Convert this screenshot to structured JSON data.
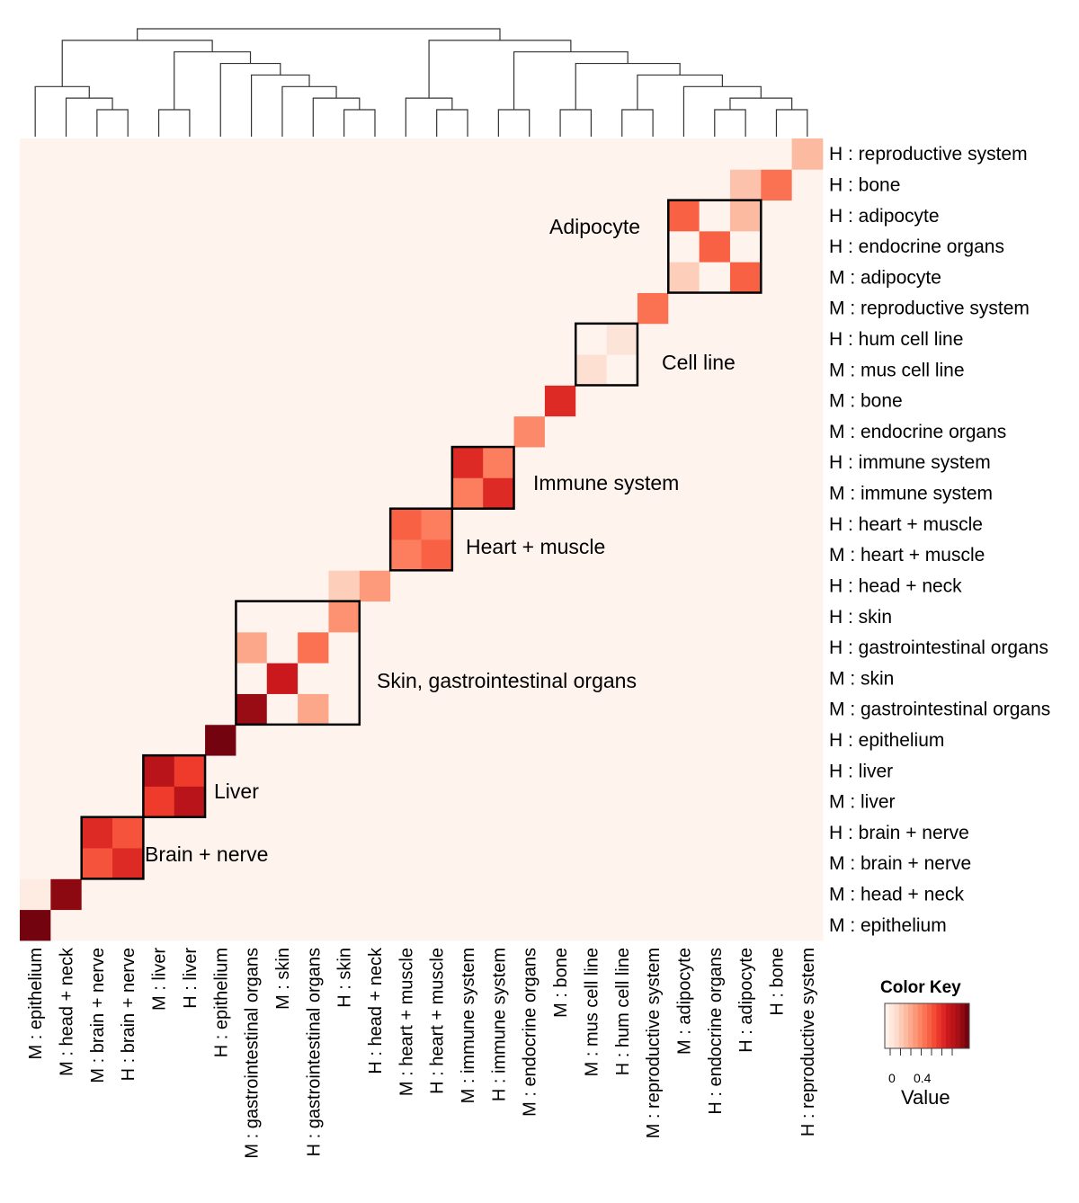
{
  "chart_data": {
    "type": "heatmap",
    "title": "",
    "labels": [
      "M : epithelium",
      "M : head + neck",
      "M : brain + nerve",
      "H : brain + nerve",
      "M : liver",
      "H : liver",
      "H : epithelium",
      "M : gastrointestinal organs",
      "M : skin",
      "H : gastrointestinal organs",
      "H : skin",
      "H : head + neck",
      "M : heart + muscle",
      "H : heart + muscle",
      "M : immune system",
      "H : immune system",
      "M : endocrine organs",
      "M : bone",
      "M : mus cell line",
      "H : hum cell line",
      "M : reproductive system",
      "M : adipocyte",
      "H : endocrine organs",
      "H : adipocyte",
      "H : bone",
      "H : reproductive system"
    ],
    "value_range": [
      0,
      0.8
    ],
    "default_value": 0.01,
    "values": [
      {
        "row": "M : epithelium",
        "col": "M : epithelium",
        "value": 0.78
      },
      {
        "row": "M : head + neck",
        "col": "M : head + neck",
        "value": 0.74
      },
      {
        "row": "M : brain + nerve",
        "col": "M : brain + nerve",
        "value": 0.45
      },
      {
        "row": "H : brain + nerve",
        "col": "H : brain + nerve",
        "value": 0.45
      },
      {
        "row": "M : brain + nerve",
        "col": "H : brain + nerve",
        "value": 0.55
      },
      {
        "row": "H : brain + nerve",
        "col": "M : brain + nerve",
        "value": 0.55
      },
      {
        "row": "M : liver",
        "col": "M : liver",
        "value": 0.5
      },
      {
        "row": "H : liver",
        "col": "H : liver",
        "value": 0.5
      },
      {
        "row": "M : liver",
        "col": "H : liver",
        "value": 0.65
      },
      {
        "row": "H : liver",
        "col": "M : liver",
        "value": 0.65
      },
      {
        "row": "H : epithelium",
        "col": "H : epithelium",
        "value": 0.78
      },
      {
        "row": "M : gastrointestinal organs",
        "col": "M : gastrointestinal organs",
        "value": 0.72
      },
      {
        "row": "M : skin",
        "col": "M : skin",
        "value": 0.6
      },
      {
        "row": "H : gastrointestinal organs",
        "col": "H : gastrointestinal organs",
        "value": 0.38
      },
      {
        "row": "H : skin",
        "col": "H : skin",
        "value": 0.3
      },
      {
        "row": "H : gastrointestinal organs",
        "col": "M : gastrointestinal organs",
        "value": 0.25
      },
      {
        "row": "M : gastrointestinal organs",
        "col": "H : gastrointestinal organs",
        "value": 0.25
      },
      {
        "row": "H : head + neck",
        "col": "H : head + neck",
        "value": 0.28
      },
      {
        "row": "M : heart + muscle",
        "col": "M : heart + muscle",
        "value": 0.35
      },
      {
        "row": "H : heart + muscle",
        "col": "H : heart + muscle",
        "value": 0.35
      },
      {
        "row": "M : heart + muscle",
        "col": "H : heart + muscle",
        "value": 0.42
      },
      {
        "row": "H : heart + muscle",
        "col": "M : heart + muscle",
        "value": 0.42
      },
      {
        "row": "M : immune system",
        "col": "M : immune system",
        "value": 0.35
      },
      {
        "row": "H : immune system",
        "col": "H : immune system",
        "value": 0.35
      },
      {
        "row": "M : immune system",
        "col": "H : immune system",
        "value": 0.55
      },
      {
        "row": "H : immune system",
        "col": "M : immune system",
        "value": 0.55
      },
      {
        "row": "M : endocrine organs",
        "col": "M : endocrine organs",
        "value": 0.32
      },
      {
        "row": "M : bone",
        "col": "M : bone",
        "value": 0.55
      },
      {
        "row": "M : mus cell line",
        "col": "M : mus cell line",
        "value": 0.1
      },
      {
        "row": "H : hum cell line",
        "col": "H : hum cell line",
        "value": 0.08
      },
      {
        "row": "M : reproductive system",
        "col": "M : reproductive system",
        "value": 0.38
      },
      {
        "row": "M : adipocyte",
        "col": "M : adipocyte",
        "value": 0.15
      },
      {
        "row": "H : endocrine organs",
        "col": "H : endocrine organs",
        "value": 0.42
      },
      {
        "row": "H : adipocyte",
        "col": "H : adipocyte",
        "value": 0.2
      },
      {
        "row": "H : adipocyte",
        "col": "M : adipocyte",
        "value": 0.42
      },
      {
        "row": "M : adipocyte",
        "col": "H : adipocyte",
        "value": 0.42
      },
      {
        "row": "H : bone",
        "col": "H : bone",
        "value": 0.38
      },
      {
        "row": "H : reproductive system",
        "col": "H : reproductive system",
        "value": 0.2
      },
      {
        "row": "H : bone",
        "col": "H : adipocyte",
        "value": 0.18
      },
      {
        "row": "H : head + neck",
        "col": "H : skin",
        "value": 0.15
      },
      {
        "row": "M : head + neck",
        "col": "M : epithelium",
        "value": 0.05
      }
    ],
    "groups": [
      {
        "label": "Adipocyte",
        "from": "M : adipocyte",
        "to": "H : adipocyte"
      },
      {
        "label": "Cell line",
        "from": "M : mus cell line",
        "to": "H : hum cell line"
      },
      {
        "label": "Immune system",
        "from": "M : immune system",
        "to": "H : immune system"
      },
      {
        "label": "Heart + muscle",
        "from": "M : heart + muscle",
        "to": "H : heart + muscle"
      },
      {
        "label": "Skin, gastrointestinal organs",
        "from": "M : gastrointestinal organs",
        "to": "H : skin"
      },
      {
        "label": "Liver",
        "from": "M : liver",
        "to": "H : liver"
      },
      {
        "label": "Brain + nerve",
        "from": "M : brain + nerve",
        "to": "H : brain + nerve"
      }
    ],
    "color_key": {
      "title": "Color Key",
      "ticks": [
        "0",
        "0.4"
      ],
      "label": "Value",
      "colors": [
        "#fff5f0",
        "#fde0d2",
        "#fcbba1",
        "#fc9272",
        "#fb6a4a",
        "#ef3b2c",
        "#cb181d",
        "#a50f15",
        "#67000d"
      ]
    },
    "legend_position": "bottom-right"
  }
}
